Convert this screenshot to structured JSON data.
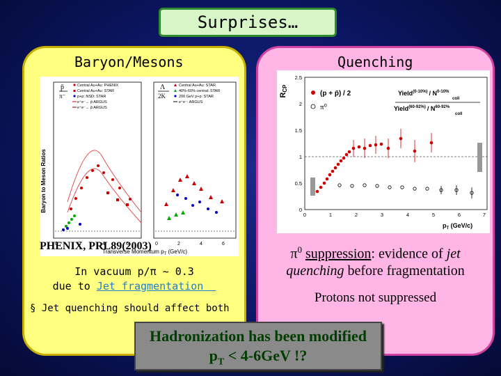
{
  "title": "Surprises…",
  "left": {
    "heading": "Baryon/Mesons",
    "plot": {
      "ylabel": "Baryon to Meson Ratios",
      "xlabel": "Transverse Momentum p",
      "xlabel_sub": "T",
      "xlabel_unit": " (GeV/c)",
      "xticks": [
        "0",
        "2",
        "4",
        "6",
        "0",
        "2",
        "4",
        "6"
      ],
      "ratio1_num": "p̄",
      "ratio1_den": "π⁻",
      "ratio2_num": "Λ",
      "ratio2_den": "2K",
      "legend1": [
        "Central Au+Au: PHENIX",
        "Central Au+Au: STAR",
        "p+p: NSD: STAR",
        "e⁺e⁻→ p̄ ARGUS",
        "e⁺e⁻→ p̄ ARGUS"
      ],
      "legend2": [
        "Central Au+Au: STAR",
        "40%-60% central: STAR",
        "200 GeV p+p: STAR",
        "e⁺e⁻: ARGUS"
      ]
    },
    "citation": "PHENIX, PRL89(2003)",
    "note_line1": "In vacuum p/π ~ 0.3",
    "note_line2_prefix": "due to ",
    "note_line2_link": "Jet fragmentation",
    "bullet": "§ Jet quenching should affect both"
  },
  "right": {
    "heading": "Quenching",
    "plot": {
      "ylabel": "R",
      "ylabel_sub": "CP",
      "yticks": [
        "2.5",
        "2",
        "1.5",
        "1",
        "0.5",
        "0"
      ],
      "xticks": [
        "0",
        "1",
        "2",
        "3",
        "4",
        "5",
        "6",
        "7"
      ],
      "xlabel": "p",
      "xlabel_sub": "T",
      "xlabel_unit": " (GeV/c)",
      "legend_pp": "(p + p̄) / 2",
      "legend_pi0": "π⁰",
      "yield_top": "Yield",
      "yield_top_sup": "(0-10%)",
      "yield_bottom": "Yield",
      "yield_bottom_sup": "(60-92%)",
      "ncoll_top": "/ N",
      "ncoll_top_sup": "0-10%",
      "ncoll_top_sub": "coll",
      "ncoll_bottom": "/ N",
      "ncoll_bottom_sup": "60-92%",
      "ncoll_bottom_sub": "coll"
    },
    "line1_pi": "π",
    "line1_sup": "0",
    "line1_suppression": "suppression",
    "line1_rest": ": evidence of ",
    "line1_italic": "jet",
    "line2_italic": "quenching",
    "line2_rest": " before fragmentation",
    "protons": "Protons not suppressed"
  },
  "bottom": {
    "line1": "Hadronization has been modified",
    "line2_p": "p",
    "line2_sub": "T",
    "line2_rest": " < 4-6GeV !?"
  },
  "colors": {
    "left_panel": "#ffff80",
    "right_panel": "#ffb6e6",
    "title_box": "#d8f5c8",
    "link": "#1e7fd0",
    "bottom_text": "#003d00"
  }
}
